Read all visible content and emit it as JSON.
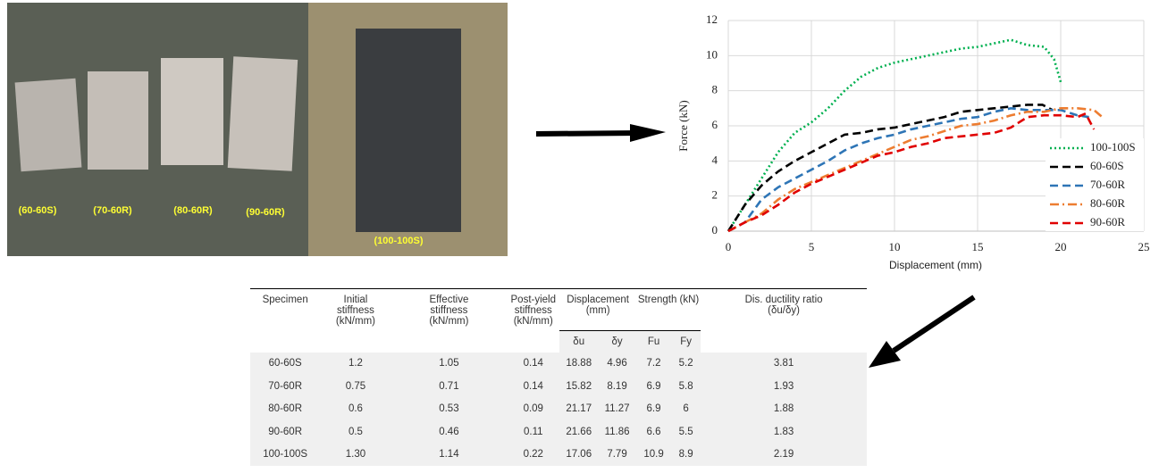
{
  "photo": {
    "labels": [
      "(60-60S)",
      "(70-60R)",
      "(80-60R)",
      "(90-60R)",
      "(100-100S)"
    ]
  },
  "chart_data": {
    "type": "line",
    "x_label": "Displacement (mm)",
    "y_label": "Force (kN)",
    "xlim": [
      0,
      25
    ],
    "xticks": [
      0,
      5,
      10,
      15,
      20,
      25
    ],
    "ylim": [
      0,
      12
    ],
    "yticks": [
      0,
      2,
      4,
      6,
      8,
      10,
      12
    ],
    "grid": true,
    "legend": "right",
    "series": [
      {
        "name": "100-100S",
        "color": "#00b050",
        "dash": "dotted",
        "x": [
          0,
          1,
          2,
          3,
          4,
          5,
          6,
          7,
          8,
          9,
          10,
          11,
          12,
          13,
          14,
          15,
          16,
          17,
          18,
          19,
          19.6,
          20
        ],
        "values": [
          0,
          1.5,
          3,
          4.5,
          5.6,
          6.2,
          7,
          8,
          8.8,
          9.3,
          9.6,
          9.8,
          10,
          10.2,
          10.4,
          10.5,
          10.7,
          10.9,
          10.6,
          10.5,
          9.8,
          8.5
        ]
      },
      {
        "name": "60-60S",
        "color": "#000000",
        "dash": "dashed",
        "x": [
          0,
          1,
          2,
          3,
          4,
          5,
          6,
          7,
          8,
          9,
          10,
          11,
          12,
          13,
          14,
          15,
          16,
          17,
          18,
          18.9,
          19.5
        ],
        "values": [
          0,
          1.5,
          2.6,
          3.4,
          4,
          4.5,
          5,
          5.5,
          5.6,
          5.8,
          5.9,
          6.1,
          6.3,
          6.5,
          6.8,
          6.9,
          7,
          7.1,
          7.2,
          7.2,
          6.9
        ]
      },
      {
        "name": "70-60R",
        "color": "#2e75b6",
        "dash": "dashed",
        "x": [
          0,
          1,
          2,
          3,
          4,
          5,
          6,
          7,
          8,
          9,
          10,
          11,
          12,
          13,
          14,
          15,
          16,
          17,
          18,
          19,
          20,
          21,
          21.7
        ],
        "values": [
          0,
          0.5,
          1.8,
          2.5,
          3,
          3.5,
          4,
          4.6,
          5,
          5.3,
          5.5,
          5.8,
          6,
          6.2,
          6.4,
          6.5,
          6.8,
          7,
          6.9,
          6.9,
          6.9,
          6.6,
          6.5
        ]
      },
      {
        "name": "80-60R",
        "color": "#ed7d31",
        "dash": "dashdot",
        "x": [
          0,
          2,
          3,
          4,
          5,
          6,
          7,
          8,
          9,
          10,
          11,
          12,
          13,
          14,
          15,
          16,
          17,
          18,
          19,
          20,
          21,
          22,
          22.5
        ],
        "values": [
          0,
          1,
          1.8,
          2.4,
          2.8,
          3.2,
          3.6,
          4,
          4.4,
          4.8,
          5.2,
          5.4,
          5.7,
          6,
          6.1,
          6.3,
          6.6,
          6.8,
          6.8,
          7,
          7,
          6.9,
          6.5
        ]
      },
      {
        "name": "90-60R",
        "color": "#e00000",
        "dash": "dashed",
        "x": [
          0,
          1,
          2,
          3,
          4,
          5,
          6,
          7,
          8,
          9,
          10,
          11,
          12,
          13,
          14,
          15,
          16,
          17,
          18,
          19,
          20,
          21,
          21.5,
          22
        ],
        "values": [
          0,
          0.5,
          0.9,
          1.5,
          2.2,
          2.7,
          3.1,
          3.5,
          3.9,
          4.3,
          4.5,
          4.8,
          5,
          5.3,
          5.4,
          5.5,
          5.6,
          5.9,
          6.5,
          6.6,
          6.6,
          6.5,
          6.7,
          5.8
        ]
      }
    ]
  },
  "table": {
    "header": [
      "Specimen",
      "Initial stiffness (kN/mm)",
      "Effective stiffness (kN/mm)",
      "Post-yield stiffness (kN/mm)",
      "Displacement (mm)",
      "Strength (kN)",
      "Dis. ductility ratio (δu/δy)"
    ],
    "subheader": [
      "δu",
      "δy",
      "Fu",
      "Fy"
    ],
    "rows": [
      [
        "60-60S",
        "1.2",
        "1.05",
        "0.14",
        "18.88",
        "4.96",
        "7.2",
        "5.2",
        "3.81"
      ],
      [
        "70-60R",
        "0.75",
        "0.71",
        "0.14",
        "15.82",
        "8.19",
        "6.9",
        "5.8",
        "1.93"
      ],
      [
        "80-60R",
        "0.6",
        "0.53",
        "0.09",
        "21.17",
        "11.27",
        "6.9",
        "6",
        "1.88"
      ],
      [
        "90-60R",
        "0.5",
        "0.46",
        "0.11",
        "21.66",
        "11.86",
        "6.6",
        "5.5",
        "1.83"
      ],
      [
        "100-100S",
        "1.30",
        "1.14",
        "0.22",
        "17.06",
        "7.79",
        "10.9",
        "8.9",
        "2.19"
      ]
    ]
  }
}
